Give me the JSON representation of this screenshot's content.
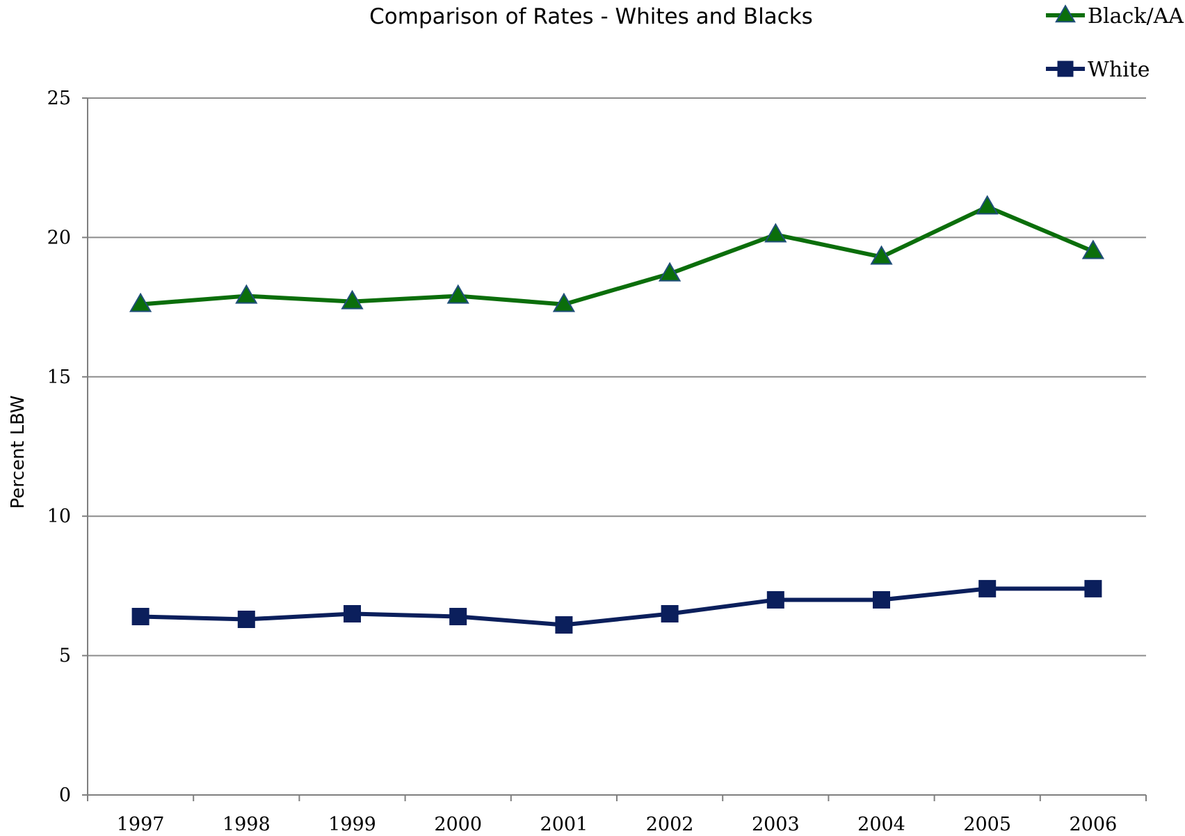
{
  "chart_data": {
    "type": "line",
    "title": "Comparison of Rates - Whites and Blacks",
    "ylabel": "Percent LBW",
    "xlabel": "",
    "categories": [
      "1997",
      "1998",
      "1999",
      "2000",
      "2001",
      "2002",
      "2003",
      "2004",
      "2005",
      "2006"
    ],
    "y_ticks": [
      "0",
      "5",
      "10",
      "15",
      "20",
      "25"
    ],
    "ylim": [
      0,
      25
    ],
    "grid": true,
    "legend_position": "top-right",
    "series": [
      {
        "name": "Black/AA",
        "color": "#0b6e0b",
        "marker": "triangle",
        "marker_color": "#0b6e0b",
        "marker_edge": "#1f4e79",
        "values": [
          17.6,
          17.9,
          17.7,
          17.9,
          17.6,
          18.7,
          20.1,
          19.3,
          21.1,
          19.5
        ]
      },
      {
        "name": "White",
        "color": "#0b1f5c",
        "marker": "square",
        "marker_color": "#0b1f5c",
        "values": [
          6.4,
          6.3,
          6.5,
          6.4,
          6.1,
          6.5,
          7.0,
          7.0,
          7.4,
          7.4
        ]
      }
    ],
    "gridline_color": "#8c8c8c",
    "axis_color": "#7f7f7f"
  }
}
